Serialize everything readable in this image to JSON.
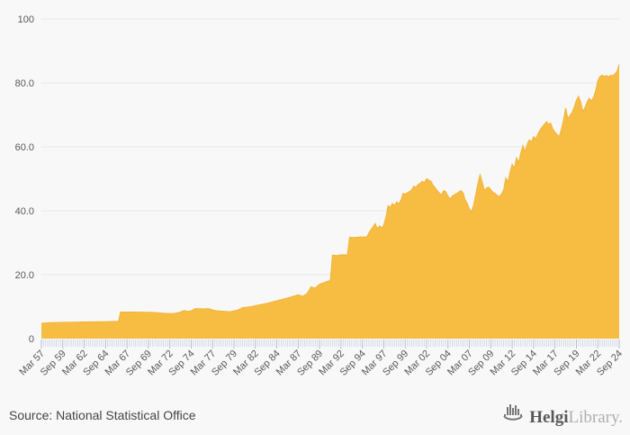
{
  "chart_data": {
    "type": "area",
    "title": "",
    "xlabel": "",
    "ylabel": "",
    "grid": "horizontal",
    "legend": "none",
    "ylim": [
      0,
      100
    ],
    "y_tick_values": [
      0,
      20,
      40,
      60,
      80,
      100
    ],
    "y_tick_labels": [
      "0",
      "20.0",
      "40.0",
      "60.0",
      "80.0",
      "100"
    ],
    "x_unit": "quarter",
    "x_range_quarters": [
      0,
      270
    ],
    "x_label_step_quarters": 10,
    "x_tick_labels": [
      "Mar 57",
      "Sep 59",
      "Mar 62",
      "Sep 64",
      "Mar 67",
      "Sep 69",
      "Mar 72",
      "Sep 74",
      "Mar 77",
      "Sep 79",
      "Mar 82",
      "Sep 84",
      "Mar 87",
      "Sep 89",
      "Mar 92",
      "Sep 94",
      "Mar 97",
      "Sep 99",
      "Mar 02",
      "Sep 04",
      "Mar 07",
      "Sep 09",
      "Mar 12",
      "Sep 14",
      "Mar 17",
      "Sep 19",
      "Mar 22",
      "Sep 24"
    ],
    "series": [
      {
        "name": "value",
        "fill_color": "#f7bd42",
        "line_color": "#f2b238",
        "points_quarter_value": [
          [
            0,
            4.8
          ],
          [
            4,
            5.0
          ],
          [
            12,
            5.1
          ],
          [
            20,
            5.2
          ],
          [
            28,
            5.3
          ],
          [
            36,
            5.4
          ],
          [
            37,
            8.3
          ],
          [
            44,
            8.3
          ],
          [
            52,
            8.2
          ],
          [
            56,
            8.0
          ],
          [
            60,
            7.8
          ],
          [
            62,
            7.9
          ],
          [
            64,
            8.1
          ],
          [
            66,
            8.6
          ],
          [
            67,
            8.8
          ],
          [
            68,
            8.5
          ],
          [
            70,
            8.7
          ],
          [
            72,
            9.4
          ],
          [
            76,
            9.3
          ],
          [
            78,
            9.4
          ],
          [
            80,
            9.0
          ],
          [
            82,
            8.7
          ],
          [
            86,
            8.5
          ],
          [
            88,
            8.4
          ],
          [
            90,
            8.7
          ],
          [
            92,
            9.0
          ],
          [
            94,
            9.7
          ],
          [
            98,
            10.0
          ],
          [
            102,
            10.6
          ],
          [
            106,
            11.1
          ],
          [
            108,
            11.5
          ],
          [
            112,
            12.2
          ],
          [
            116,
            12.9
          ],
          [
            120,
            13.7
          ],
          [
            121,
            13.5
          ],
          [
            122,
            13.2
          ],
          [
            123,
            13.6
          ],
          [
            124,
            14.0
          ],
          [
            125,
            15.0
          ],
          [
            126,
            16.2
          ],
          [
            127,
            16.0
          ],
          [
            128,
            15.8
          ],
          [
            129,
            16.4
          ],
          [
            130,
            17.0
          ],
          [
            132,
            17.5
          ],
          [
            134,
            18.0
          ],
          [
            135,
            18.1
          ],
          [
            136,
            26.1
          ],
          [
            138,
            26.0
          ],
          [
            140,
            26.2
          ],
          [
            143,
            26.2
          ],
          [
            144,
            31.7
          ],
          [
            146,
            31.6
          ],
          [
            149,
            31.8
          ],
          [
            152,
            31.8
          ],
          [
            153,
            33.0
          ],
          [
            154,
            34.1
          ],
          [
            155,
            35.0
          ],
          [
            156,
            36.0
          ],
          [
            157,
            34.3
          ],
          [
            158,
            35.3
          ],
          [
            159,
            34.6
          ],
          [
            160,
            35.5
          ],
          [
            161,
            38.0
          ],
          [
            162,
            41.6
          ],
          [
            163,
            41.0
          ],
          [
            164,
            42.3
          ],
          [
            165,
            41.6
          ],
          [
            166,
            42.8
          ],
          [
            167,
            42.2
          ],
          [
            168,
            43.3
          ],
          [
            169,
            45.4
          ],
          [
            170,
            45.2
          ],
          [
            171,
            45.6
          ],
          [
            172,
            46.0
          ],
          [
            173,
            46.5
          ],
          [
            174,
            47.7
          ],
          [
            175,
            47.3
          ],
          [
            176,
            48.2
          ],
          [
            177,
            48.6
          ],
          [
            178,
            49.2
          ],
          [
            179,
            48.8
          ],
          [
            180,
            50.0
          ],
          [
            181,
            49.6
          ],
          [
            182,
            49.2
          ],
          [
            183,
            48.0
          ],
          [
            184,
            47.2
          ],
          [
            185,
            46.3
          ],
          [
            186,
            45.5
          ],
          [
            187,
            44.9
          ],
          [
            188,
            46.3
          ],
          [
            189,
            45.9
          ],
          [
            190,
            44.5
          ],
          [
            191,
            43.7
          ],
          [
            192,
            44.6
          ],
          [
            193,
            45.0
          ],
          [
            194,
            45.4
          ],
          [
            195,
            45.8
          ],
          [
            196,
            46.3
          ],
          [
            197,
            45.7
          ],
          [
            198,
            43.5
          ],
          [
            199,
            42.3
          ],
          [
            200,
            40.5
          ],
          [
            201,
            39.7
          ],
          [
            202,
            41.8
          ],
          [
            203,
            45.2
          ],
          [
            204,
            48.6
          ],
          [
            205,
            51.3
          ],
          [
            206,
            49.0
          ],
          [
            207,
            46.3
          ],
          [
            208,
            47.1
          ],
          [
            209,
            47.4
          ],
          [
            210,
            46.6
          ],
          [
            211,
            45.8
          ],
          [
            212,
            45.4
          ],
          [
            213,
            44.8
          ],
          [
            214,
            44.4
          ],
          [
            215,
            45.2
          ],
          [
            216,
            46.5
          ],
          [
            217,
            50.3
          ],
          [
            218,
            49.0
          ],
          [
            219,
            52.0
          ],
          [
            220,
            54.5
          ],
          [
            221,
            53.3
          ],
          [
            222,
            56.6
          ],
          [
            223,
            55.0
          ],
          [
            224,
            58.0
          ],
          [
            225,
            60.4
          ],
          [
            226,
            58.5
          ],
          [
            227,
            60.8
          ],
          [
            228,
            62.2
          ],
          [
            229,
            61.5
          ],
          [
            230,
            63.2
          ],
          [
            231,
            62.4
          ],
          [
            232,
            64.0
          ],
          [
            233,
            65.2
          ],
          [
            234,
            66.2
          ],
          [
            235,
            67.0
          ],
          [
            236,
            67.9
          ],
          [
            237,
            67.0
          ],
          [
            238,
            67.4
          ],
          [
            239,
            65.5
          ],
          [
            240,
            64.6
          ],
          [
            241,
            63.8
          ],
          [
            242,
            63.2
          ],
          [
            243,
            65.5
          ],
          [
            244,
            68.5
          ],
          [
            245,
            72.1
          ],
          [
            246,
            68.8
          ],
          [
            247,
            69.8
          ],
          [
            248,
            70.7
          ],
          [
            249,
            72.5
          ],
          [
            250,
            74.5
          ],
          [
            251,
            75.8
          ],
          [
            252,
            74.0
          ],
          [
            253,
            71.0
          ],
          [
            254,
            72.3
          ],
          [
            255,
            74.0
          ],
          [
            256,
            75.2
          ],
          [
            257,
            74.3
          ],
          [
            258,
            75.5
          ],
          [
            259,
            77.5
          ],
          [
            260,
            80.6
          ],
          [
            261,
            82.0
          ],
          [
            262,
            82.4
          ],
          [
            263,
            82.0
          ],
          [
            264,
            82.3
          ],
          [
            265,
            81.9
          ],
          [
            266,
            82.4
          ],
          [
            267,
            82.2
          ],
          [
            268,
            82.8
          ],
          [
            269,
            83.6
          ],
          [
            270,
            85.7
          ]
        ]
      }
    ]
  },
  "colors": {
    "background": "#f8f8f8",
    "gridline": "#e8e8e8",
    "minor_tick": "#cfd6e6",
    "major_tick": "#aab6d0",
    "axis_label": "#59595c"
  },
  "footer": {
    "source": "Source: National Statistical Office",
    "logo": {
      "icon": "helgi-bars-icon",
      "bold": "Helgi",
      "light": "Library."
    }
  }
}
